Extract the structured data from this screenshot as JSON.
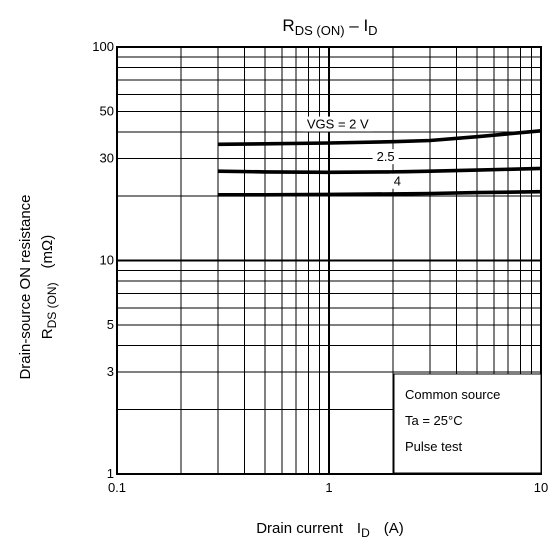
{
  "chart_data": {
    "type": "line",
    "title_main": "R",
    "title_sub": "DS (ON)",
    "title_dash": " – I",
    "title_sub2": "D",
    "xlabel_text": "Drain current",
    "xlabel_sym": "I",
    "xlabel_sub": "D",
    "xlabel_unit": "(A)",
    "ylabel_line1": "Drain-source ON resistance",
    "ylabel_sym": "R",
    "ylabel_sub": "DS (ON)",
    "ylabel_unit": "(mΩ)",
    "x_scale": "log",
    "y_scale": "log",
    "xlim": [
      0.1,
      10
    ],
    "ylim": [
      1,
      100
    ],
    "x_ticks": [
      {
        "value": 0.1,
        "label": "0.1"
      },
      {
        "value": 1,
        "label": "1"
      },
      {
        "value": 10,
        "label": "10"
      }
    ],
    "y_ticks": [
      {
        "value": 1,
        "label": "1"
      },
      {
        "value": 3,
        "label": "3"
      },
      {
        "value": 5,
        "label": "5"
      },
      {
        "value": 10,
        "label": "10"
      },
      {
        "value": 30,
        "label": "30"
      },
      {
        "value": 50,
        "label": "50"
      },
      {
        "value": 100,
        "label": "100"
      }
    ],
    "grid": true,
    "series": [
      {
        "name": "VGS = 2 V",
        "x": [
          0.3,
          0.5,
          1,
          2,
          3,
          5,
          10
        ],
        "y": [
          35,
          35.2,
          35.5,
          36,
          36.5,
          38,
          40.5
        ]
      },
      {
        "name": "2.5",
        "x": [
          0.3,
          0.5,
          1,
          2,
          3,
          5,
          10
        ],
        "y": [
          26.2,
          26,
          25.9,
          26,
          26.2,
          26.5,
          27
        ]
      },
      {
        "name": "4",
        "x": [
          0.3,
          0.5,
          1,
          2,
          3,
          5,
          10
        ],
        "y": [
          20.3,
          20.3,
          20.4,
          20.5,
          20.6,
          20.8,
          21
        ]
      }
    ],
    "annotations": [
      "Common source",
      "Ta = 25°C",
      "Pulse test"
    ]
  }
}
